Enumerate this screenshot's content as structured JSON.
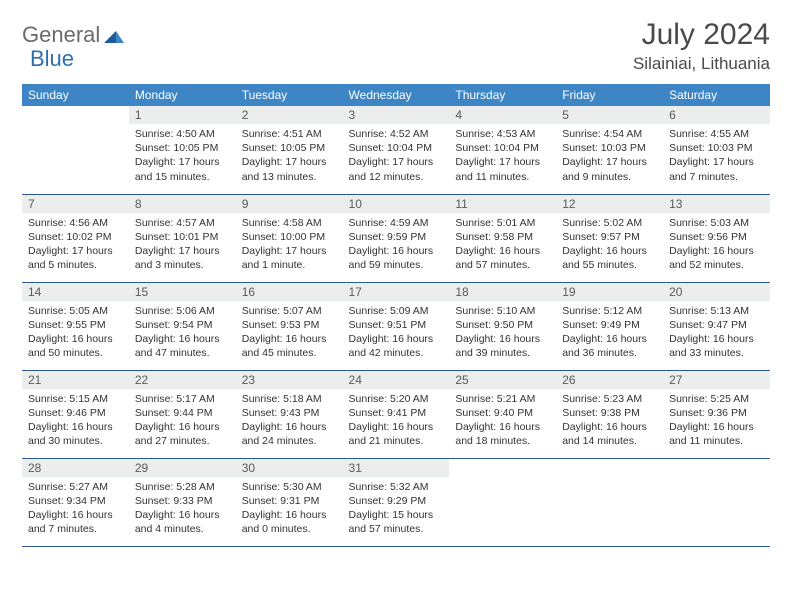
{
  "brand": {
    "name_gray": "General",
    "name_blue": "Blue"
  },
  "title": "July 2024",
  "location": "Silainiai, Lithuania",
  "colors": {
    "header_bg": "#3e85c6",
    "header_text": "#ffffff",
    "daynum_bg": "#eceded",
    "rule": "#2e5a8a",
    "logo_gray": "#6b6b6b",
    "logo_blue": "#2f6fb0"
  },
  "weekdays": [
    "Sunday",
    "Monday",
    "Tuesday",
    "Wednesday",
    "Thursday",
    "Friday",
    "Saturday"
  ],
  "grid": [
    [
      {
        "n": "",
        "lines": []
      },
      {
        "n": "1",
        "lines": [
          "Sunrise: 4:50 AM",
          "Sunset: 10:05 PM",
          "Daylight: 17 hours",
          "and 15 minutes."
        ]
      },
      {
        "n": "2",
        "lines": [
          "Sunrise: 4:51 AM",
          "Sunset: 10:05 PM",
          "Daylight: 17 hours",
          "and 13 minutes."
        ]
      },
      {
        "n": "3",
        "lines": [
          "Sunrise: 4:52 AM",
          "Sunset: 10:04 PM",
          "Daylight: 17 hours",
          "and 12 minutes."
        ]
      },
      {
        "n": "4",
        "lines": [
          "Sunrise: 4:53 AM",
          "Sunset: 10:04 PM",
          "Daylight: 17 hours",
          "and 11 minutes."
        ]
      },
      {
        "n": "5",
        "lines": [
          "Sunrise: 4:54 AM",
          "Sunset: 10:03 PM",
          "Daylight: 17 hours",
          "and 9 minutes."
        ]
      },
      {
        "n": "6",
        "lines": [
          "Sunrise: 4:55 AM",
          "Sunset: 10:03 PM",
          "Daylight: 17 hours",
          "and 7 minutes."
        ]
      }
    ],
    [
      {
        "n": "7",
        "lines": [
          "Sunrise: 4:56 AM",
          "Sunset: 10:02 PM",
          "Daylight: 17 hours",
          "and 5 minutes."
        ]
      },
      {
        "n": "8",
        "lines": [
          "Sunrise: 4:57 AM",
          "Sunset: 10:01 PM",
          "Daylight: 17 hours",
          "and 3 minutes."
        ]
      },
      {
        "n": "9",
        "lines": [
          "Sunrise: 4:58 AM",
          "Sunset: 10:00 PM",
          "Daylight: 17 hours",
          "and 1 minute."
        ]
      },
      {
        "n": "10",
        "lines": [
          "Sunrise: 4:59 AM",
          "Sunset: 9:59 PM",
          "Daylight: 16 hours",
          "and 59 minutes."
        ]
      },
      {
        "n": "11",
        "lines": [
          "Sunrise: 5:01 AM",
          "Sunset: 9:58 PM",
          "Daylight: 16 hours",
          "and 57 minutes."
        ]
      },
      {
        "n": "12",
        "lines": [
          "Sunrise: 5:02 AM",
          "Sunset: 9:57 PM",
          "Daylight: 16 hours",
          "and 55 minutes."
        ]
      },
      {
        "n": "13",
        "lines": [
          "Sunrise: 5:03 AM",
          "Sunset: 9:56 PM",
          "Daylight: 16 hours",
          "and 52 minutes."
        ]
      }
    ],
    [
      {
        "n": "14",
        "lines": [
          "Sunrise: 5:05 AM",
          "Sunset: 9:55 PM",
          "Daylight: 16 hours",
          "and 50 minutes."
        ]
      },
      {
        "n": "15",
        "lines": [
          "Sunrise: 5:06 AM",
          "Sunset: 9:54 PM",
          "Daylight: 16 hours",
          "and 47 minutes."
        ]
      },
      {
        "n": "16",
        "lines": [
          "Sunrise: 5:07 AM",
          "Sunset: 9:53 PM",
          "Daylight: 16 hours",
          "and 45 minutes."
        ]
      },
      {
        "n": "17",
        "lines": [
          "Sunrise: 5:09 AM",
          "Sunset: 9:51 PM",
          "Daylight: 16 hours",
          "and 42 minutes."
        ]
      },
      {
        "n": "18",
        "lines": [
          "Sunrise: 5:10 AM",
          "Sunset: 9:50 PM",
          "Daylight: 16 hours",
          "and 39 minutes."
        ]
      },
      {
        "n": "19",
        "lines": [
          "Sunrise: 5:12 AM",
          "Sunset: 9:49 PM",
          "Daylight: 16 hours",
          "and 36 minutes."
        ]
      },
      {
        "n": "20",
        "lines": [
          "Sunrise: 5:13 AM",
          "Sunset: 9:47 PM",
          "Daylight: 16 hours",
          "and 33 minutes."
        ]
      }
    ],
    [
      {
        "n": "21",
        "lines": [
          "Sunrise: 5:15 AM",
          "Sunset: 9:46 PM",
          "Daylight: 16 hours",
          "and 30 minutes."
        ]
      },
      {
        "n": "22",
        "lines": [
          "Sunrise: 5:17 AM",
          "Sunset: 9:44 PM",
          "Daylight: 16 hours",
          "and 27 minutes."
        ]
      },
      {
        "n": "23",
        "lines": [
          "Sunrise: 5:18 AM",
          "Sunset: 9:43 PM",
          "Daylight: 16 hours",
          "and 24 minutes."
        ]
      },
      {
        "n": "24",
        "lines": [
          "Sunrise: 5:20 AM",
          "Sunset: 9:41 PM",
          "Daylight: 16 hours",
          "and 21 minutes."
        ]
      },
      {
        "n": "25",
        "lines": [
          "Sunrise: 5:21 AM",
          "Sunset: 9:40 PM",
          "Daylight: 16 hours",
          "and 18 minutes."
        ]
      },
      {
        "n": "26",
        "lines": [
          "Sunrise: 5:23 AM",
          "Sunset: 9:38 PM",
          "Daylight: 16 hours",
          "and 14 minutes."
        ]
      },
      {
        "n": "27",
        "lines": [
          "Sunrise: 5:25 AM",
          "Sunset: 9:36 PM",
          "Daylight: 16 hours",
          "and 11 minutes."
        ]
      }
    ],
    [
      {
        "n": "28",
        "lines": [
          "Sunrise: 5:27 AM",
          "Sunset: 9:34 PM",
          "Daylight: 16 hours",
          "and 7 minutes."
        ]
      },
      {
        "n": "29",
        "lines": [
          "Sunrise: 5:28 AM",
          "Sunset: 9:33 PM",
          "Daylight: 16 hours",
          "and 4 minutes."
        ]
      },
      {
        "n": "30",
        "lines": [
          "Sunrise: 5:30 AM",
          "Sunset: 9:31 PM",
          "Daylight: 16 hours",
          "and 0 minutes."
        ]
      },
      {
        "n": "31",
        "lines": [
          "Sunrise: 5:32 AM",
          "Sunset: 9:29 PM",
          "Daylight: 15 hours",
          "and 57 minutes."
        ]
      },
      {
        "n": "",
        "lines": []
      },
      {
        "n": "",
        "lines": []
      },
      {
        "n": "",
        "lines": []
      }
    ]
  ]
}
